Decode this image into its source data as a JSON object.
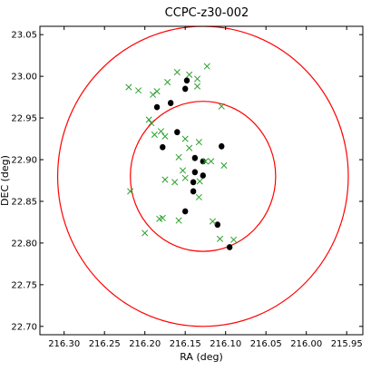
{
  "chart_data": {
    "type": "scatter",
    "title": "CCPC-z30-002",
    "xlabel": "RA (deg)",
    "ylabel": "DEC (deg)",
    "xlim": [
      216.33,
      215.93
    ],
    "ylim": [
      22.69,
      23.06
    ],
    "x_ticks": [
      216.3,
      216.25,
      216.2,
      216.15,
      216.1,
      216.05,
      216.0,
      215.95
    ],
    "x_tick_labels": [
      "216.30",
      "216.25",
      "216.20",
      "216.15",
      "216.10",
      "216.05",
      "216.00",
      "215.95"
    ],
    "y_ticks": [
      22.7,
      22.75,
      22.8,
      22.85,
      22.9,
      22.95,
      23.0,
      23.05
    ],
    "y_tick_labels": [
      "22.70",
      "22.75",
      "22.80",
      "22.85",
      "22.90",
      "22.95",
      "23.00",
      "23.05"
    ],
    "grid": false,
    "circles": [
      {
        "center": [
          216.128,
          22.88
        ],
        "radius": 0.18,
        "color": "#ff0000"
      },
      {
        "center": [
          216.128,
          22.88
        ],
        "radius": 0.09,
        "color": "#ff0000"
      }
    ],
    "series": [
      {
        "marker": "circle",
        "color": "#000000",
        "points": [
          [
            216.148,
            22.995
          ],
          [
            216.15,
            22.985
          ],
          [
            216.168,
            22.968
          ],
          [
            216.185,
            22.963
          ],
          [
            216.16,
            22.933
          ],
          [
            216.178,
            22.915
          ],
          [
            216.138,
            22.902
          ],
          [
            216.128,
            22.898
          ],
          [
            216.105,
            22.916
          ],
          [
            216.138,
            22.885
          ],
          [
            216.128,
            22.881
          ],
          [
            216.14,
            22.873
          ],
          [
            216.14,
            22.862
          ],
          [
            216.15,
            22.838
          ],
          [
            216.11,
            22.822
          ],
          [
            216.095,
            22.795
          ]
        ]
      },
      {
        "marker": "x",
        "color": "#2ca02c",
        "points": [
          [
            216.22,
            22.987
          ],
          [
            216.208,
            22.983
          ],
          [
            216.19,
            22.978
          ],
          [
            216.185,
            22.982
          ],
          [
            216.172,
            22.993
          ],
          [
            216.16,
            23.005
          ],
          [
            216.145,
            23.002
          ],
          [
            216.135,
            22.997
          ],
          [
            216.135,
            22.988
          ],
          [
            216.123,
            23.012
          ],
          [
            216.105,
            22.964
          ],
          [
            216.195,
            22.948
          ],
          [
            216.192,
            22.944
          ],
          [
            216.188,
            22.93
          ],
          [
            216.18,
            22.934
          ],
          [
            216.175,
            22.928
          ],
          [
            216.15,
            22.925
          ],
          [
            216.145,
            22.914
          ],
          [
            216.133,
            22.921
          ],
          [
            216.158,
            22.903
          ],
          [
            216.125,
            22.898
          ],
          [
            216.118,
            22.898
          ],
          [
            216.102,
            22.893
          ],
          [
            216.153,
            22.887
          ],
          [
            216.15,
            22.878
          ],
          [
            216.132,
            22.874
          ],
          [
            216.163,
            22.873
          ],
          [
            216.175,
            22.876
          ],
          [
            216.218,
            22.862
          ],
          [
            216.133,
            22.855
          ],
          [
            216.158,
            22.827
          ],
          [
            216.178,
            22.83
          ],
          [
            216.182,
            22.829
          ],
          [
            216.116,
            22.826
          ],
          [
            216.107,
            22.805
          ],
          [
            216.2,
            22.812
          ],
          [
            216.09,
            22.804
          ]
        ]
      }
    ]
  }
}
